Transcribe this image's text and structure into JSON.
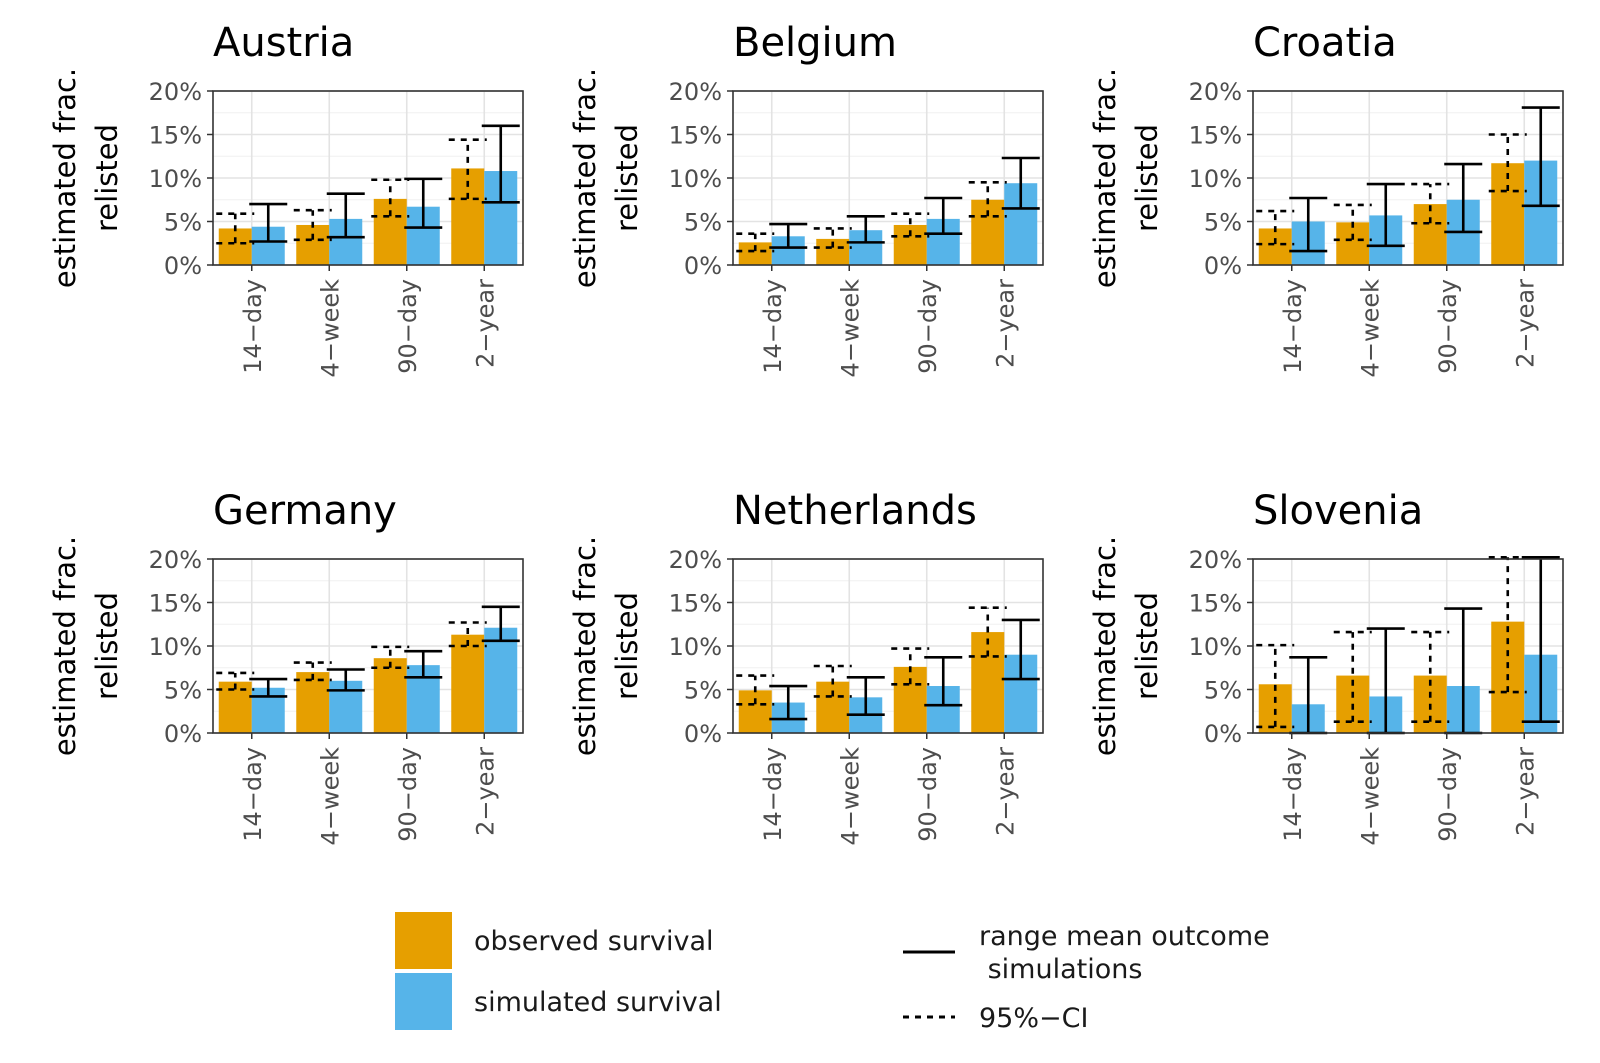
{
  "chart_data": {
    "type": "bar",
    "ylabel_lines": [
      "estimated frac.",
      "relisted"
    ],
    "ylim": [
      0,
      20
    ],
    "yticks": [
      "0%",
      "5%",
      "10%",
      "15%",
      "20%"
    ],
    "categories": [
      "14−day",
      "4−week",
      "90−day",
      "2−year"
    ],
    "grid": true,
    "legend_position": "bottom",
    "colors": {
      "observed": "#E69F00",
      "simulated": "#56B4E9"
    },
    "legend": {
      "observed": "observed survival",
      "simulated": "simulated survival",
      "range_lines": [
        "range mean outcome",
        " simulations"
      ],
      "ci": "95%−CI"
    },
    "panels": [
      {
        "title": "Austria",
        "observed": [
          4.2,
          4.6,
          7.6,
          11.1
        ],
        "observed_ci": [
          [
            2.5,
            5.9
          ],
          [
            2.9,
            6.3
          ],
          [
            5.6,
            9.8
          ],
          [
            7.6,
            14.4
          ]
        ],
        "simulated": [
          4.4,
          5.3,
          6.7,
          10.8
        ],
        "simulated_range": [
          [
            2.7,
            7.0
          ],
          [
            3.2,
            8.2
          ],
          [
            4.3,
            9.9
          ],
          [
            7.2,
            16.0
          ]
        ]
      },
      {
        "title": "Belgium",
        "observed": [
          2.6,
          3.0,
          4.6,
          7.5
        ],
        "observed_ci": [
          [
            1.6,
            3.6
          ],
          [
            2.0,
            4.2
          ],
          [
            3.3,
            5.9
          ],
          [
            5.6,
            9.5
          ]
        ],
        "simulated": [
          3.3,
          4.0,
          5.3,
          9.4
        ],
        "simulated_range": [
          [
            2.0,
            4.7
          ],
          [
            2.6,
            5.6
          ],
          [
            3.6,
            7.7
          ],
          [
            6.5,
            12.3
          ]
        ]
      },
      {
        "title": "Croatia",
        "observed": [
          4.2,
          4.9,
          7.0,
          11.7
        ],
        "observed_ci": [
          [
            2.4,
            6.2
          ],
          [
            2.9,
            6.9
          ],
          [
            4.8,
            9.3
          ],
          [
            8.5,
            15.0
          ]
        ],
        "simulated": [
          5.0,
          5.7,
          7.5,
          12.0
        ],
        "simulated_range": [
          [
            1.6,
            7.7
          ],
          [
            2.2,
            9.3
          ],
          [
            3.8,
            11.6
          ],
          [
            6.8,
            18.1
          ]
        ]
      },
      {
        "title": "Germany",
        "observed": [
          5.9,
          7.0,
          8.6,
          11.3
        ],
        "observed_ci": [
          [
            5.0,
            6.9
          ],
          [
            6.1,
            8.1
          ],
          [
            7.5,
            9.9
          ],
          [
            10.0,
            12.7
          ]
        ],
        "simulated": [
          5.2,
          6.0,
          7.8,
          12.1
        ],
        "simulated_range": [
          [
            4.2,
            6.2
          ],
          [
            4.9,
            7.3
          ],
          [
            6.4,
            9.4
          ],
          [
            10.6,
            14.5
          ]
        ]
      },
      {
        "title": "Netherlands",
        "observed": [
          4.9,
          5.9,
          7.6,
          11.6
        ],
        "observed_ci": [
          [
            3.3,
            6.6
          ],
          [
            4.2,
            7.7
          ],
          [
            5.6,
            9.7
          ],
          [
            8.8,
            14.4
          ]
        ],
        "simulated": [
          3.5,
          4.1,
          5.4,
          9.0
        ],
        "simulated_range": [
          [
            1.6,
            5.4
          ],
          [
            2.1,
            6.4
          ],
          [
            3.2,
            8.7
          ],
          [
            6.2,
            13.0
          ]
        ]
      },
      {
        "title": "Slovenia",
        "observed": [
          5.6,
          6.6,
          6.6,
          12.8
        ],
        "observed_ci": [
          [
            0.7,
            10.1
          ],
          [
            1.3,
            11.6
          ],
          [
            1.3,
            11.6
          ],
          [
            4.7,
            20.2
          ]
        ],
        "simulated": [
          3.3,
          4.2,
          5.4,
          9.0
        ],
        "simulated_range": [
          [
            0.0,
            8.7
          ],
          [
            0.0,
            12.0
          ],
          [
            0.0,
            14.3
          ],
          [
            1.3,
            20.2
          ]
        ]
      }
    ]
  }
}
